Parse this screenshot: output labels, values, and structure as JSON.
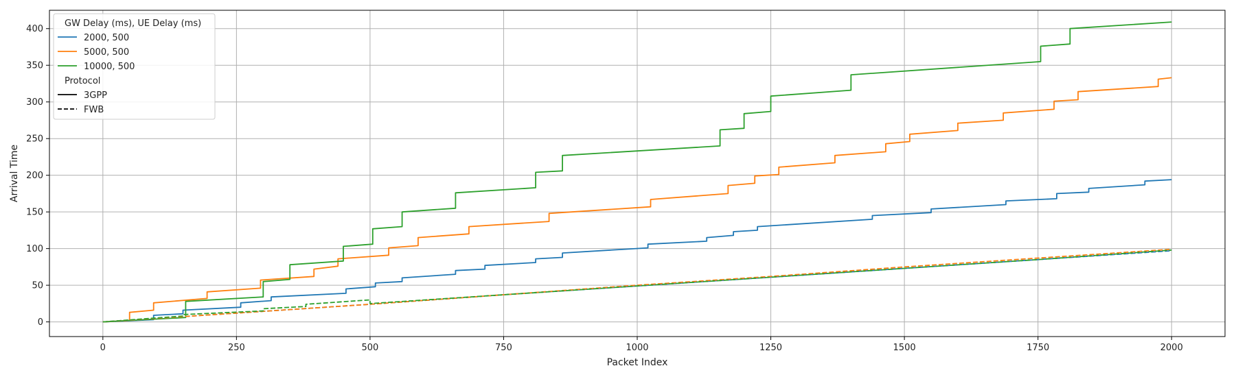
{
  "chart_data": {
    "type": "line",
    "title": "",
    "xlabel": "Packet Index",
    "ylabel": "Arrival Time",
    "xlim": [
      -100,
      2100
    ],
    "ylim": [
      -20,
      425
    ],
    "xticks": [
      0,
      250,
      500,
      750,
      1000,
      1250,
      1500,
      1750,
      2000
    ],
    "yticks": [
      0,
      50,
      100,
      150,
      200,
      250,
      300,
      350,
      400
    ],
    "grid": true,
    "legend": {
      "placement": "top-left",
      "groups": [
        {
          "title": "GW Delay (ms), UE Delay (ms)",
          "entries": [
            {
              "label": "2000, 500",
              "color": "#1f77b4",
              "style": "solid"
            },
            {
              "label": "5000, 500",
              "color": "#ff7f0e",
              "style": "solid"
            },
            {
              "label": "10000, 500",
              "color": "#2ca02c",
              "style": "solid"
            }
          ]
        },
        {
          "title": "Protocol",
          "entries": [
            {
              "label": "3GPP",
              "color": "#000000",
              "style": "solid"
            },
            {
              "label": "FWB",
              "color": "#000000",
              "style": "dashed"
            }
          ]
        }
      ]
    },
    "series": [
      {
        "name": "2000, 500 / 3GPP",
        "color": "#1f77b4",
        "style": "solid",
        "points": [
          [
            0,
            0
          ],
          [
            95,
            3
          ],
          [
            95,
            9
          ],
          [
            150,
            11
          ],
          [
            150,
            16
          ],
          [
            258,
            20
          ],
          [
            258,
            26
          ],
          [
            315,
            29
          ],
          [
            315,
            34
          ],
          [
            455,
            39
          ],
          [
            455,
            45
          ],
          [
            510,
            48
          ],
          [
            510,
            53
          ],
          [
            560,
            55
          ],
          [
            560,
            60
          ],
          [
            660,
            65
          ],
          [
            660,
            70
          ],
          [
            715,
            72
          ],
          [
            715,
            77
          ],
          [
            810,
            81
          ],
          [
            810,
            86
          ],
          [
            860,
            88
          ],
          [
            860,
            94
          ],
          [
            1020,
            101
          ],
          [
            1020,
            106
          ],
          [
            1130,
            110
          ],
          [
            1130,
            115
          ],
          [
            1180,
            118
          ],
          [
            1180,
            123
          ],
          [
            1225,
            125
          ],
          [
            1225,
            130
          ],
          [
            1440,
            140
          ],
          [
            1440,
            145
          ],
          [
            1550,
            149
          ],
          [
            1550,
            154
          ],
          [
            1690,
            160
          ],
          [
            1690,
            165
          ],
          [
            1785,
            168
          ],
          [
            1785,
            175
          ],
          [
            1845,
            177
          ],
          [
            1845,
            182
          ],
          [
            1950,
            187
          ],
          [
            1950,
            192
          ],
          [
            2000,
            194
          ]
        ]
      },
      {
        "name": "5000, 500 / 3GPP",
        "color": "#ff7f0e",
        "style": "solid",
        "points": [
          [
            0,
            0
          ],
          [
            50,
            2
          ],
          [
            50,
            13
          ],
          [
            95,
            16
          ],
          [
            95,
            26
          ],
          [
            195,
            32
          ],
          [
            195,
            41
          ],
          [
            295,
            46
          ],
          [
            295,
            57
          ],
          [
            395,
            62
          ],
          [
            395,
            72
          ],
          [
            440,
            76
          ],
          [
            440,
            86
          ],
          [
            535,
            91
          ],
          [
            535,
            101
          ],
          [
            590,
            104
          ],
          [
            590,
            115
          ],
          [
            685,
            120
          ],
          [
            685,
            130
          ],
          [
            835,
            137
          ],
          [
            835,
            148
          ],
          [
            1025,
            157
          ],
          [
            1025,
            167
          ],
          [
            1170,
            175
          ],
          [
            1170,
            186
          ],
          [
            1220,
            189
          ],
          [
            1220,
            199
          ],
          [
            1265,
            201
          ],
          [
            1265,
            211
          ],
          [
            1370,
            217
          ],
          [
            1370,
            227
          ],
          [
            1465,
            232
          ],
          [
            1465,
            243
          ],
          [
            1510,
            246
          ],
          [
            1510,
            256
          ],
          [
            1600,
            261
          ],
          [
            1600,
            271
          ],
          [
            1685,
            275
          ],
          [
            1685,
            285
          ],
          [
            1780,
            290
          ],
          [
            1780,
            301
          ],
          [
            1825,
            303
          ],
          [
            1825,
            314
          ],
          [
            1975,
            321
          ],
          [
            1975,
            331
          ],
          [
            2000,
            333
          ]
        ]
      },
      {
        "name": "10000, 500 / 3GPP",
        "color": "#2ca02c",
        "style": "solid",
        "points": [
          [
            0,
            0
          ],
          [
            155,
            6
          ],
          [
            155,
            28
          ],
          [
            300,
            34
          ],
          [
            300,
            55
          ],
          [
            350,
            58
          ],
          [
            350,
            78
          ],
          [
            450,
            83
          ],
          [
            450,
            103
          ],
          [
            505,
            106
          ],
          [
            505,
            127
          ],
          [
            560,
            130
          ],
          [
            560,
            150
          ],
          [
            660,
            155
          ],
          [
            660,
            176
          ],
          [
            810,
            183
          ],
          [
            810,
            204
          ],
          [
            860,
            206
          ],
          [
            860,
            227
          ],
          [
            1155,
            240
          ],
          [
            1155,
            262
          ],
          [
            1200,
            264
          ],
          [
            1200,
            284
          ],
          [
            1250,
            287
          ],
          [
            1250,
            308
          ],
          [
            1400,
            316
          ],
          [
            1400,
            337
          ],
          [
            1755,
            355
          ],
          [
            1755,
            376
          ],
          [
            1810,
            379
          ],
          [
            1810,
            400
          ],
          [
            2000,
            409
          ]
        ]
      },
      {
        "name": "2000, 500 / FWB",
        "color": "#1f77b4",
        "style": "dashed",
        "points": [
          [
            0,
            0
          ],
          [
            250,
            12
          ],
          [
            500,
            24
          ],
          [
            750,
            37
          ],
          [
            1000,
            49
          ],
          [
            1250,
            61
          ],
          [
            1500,
            73
          ],
          [
            1750,
            85
          ],
          [
            2000,
            97
          ]
        ]
      },
      {
        "name": "5000, 500 / FWB",
        "color": "#ff7f0e",
        "style": "dashed",
        "points": [
          [
            0,
            0
          ],
          [
            250,
            12
          ],
          [
            500,
            24
          ],
          [
            750,
            37
          ],
          [
            1000,
            50
          ],
          [
            1250,
            62
          ],
          [
            1500,
            75
          ],
          [
            1750,
            87
          ],
          [
            2000,
            99
          ]
        ]
      },
      {
        "name": "10000, 500 / FWB",
        "color": "#2ca02c",
        "style": "dashed",
        "points": [
          [
            0,
            0
          ],
          [
            150,
            8
          ],
          [
            150,
            10
          ],
          [
            300,
            15
          ],
          [
            300,
            18
          ],
          [
            380,
            21
          ],
          [
            380,
            24
          ],
          [
            500,
            30
          ],
          [
            500,
            25
          ],
          [
            750,
            37
          ],
          [
            1000,
            49
          ],
          [
            1250,
            61
          ],
          [
            1500,
            73
          ],
          [
            1750,
            85
          ],
          [
            2000,
            98
          ]
        ]
      }
    ]
  }
}
